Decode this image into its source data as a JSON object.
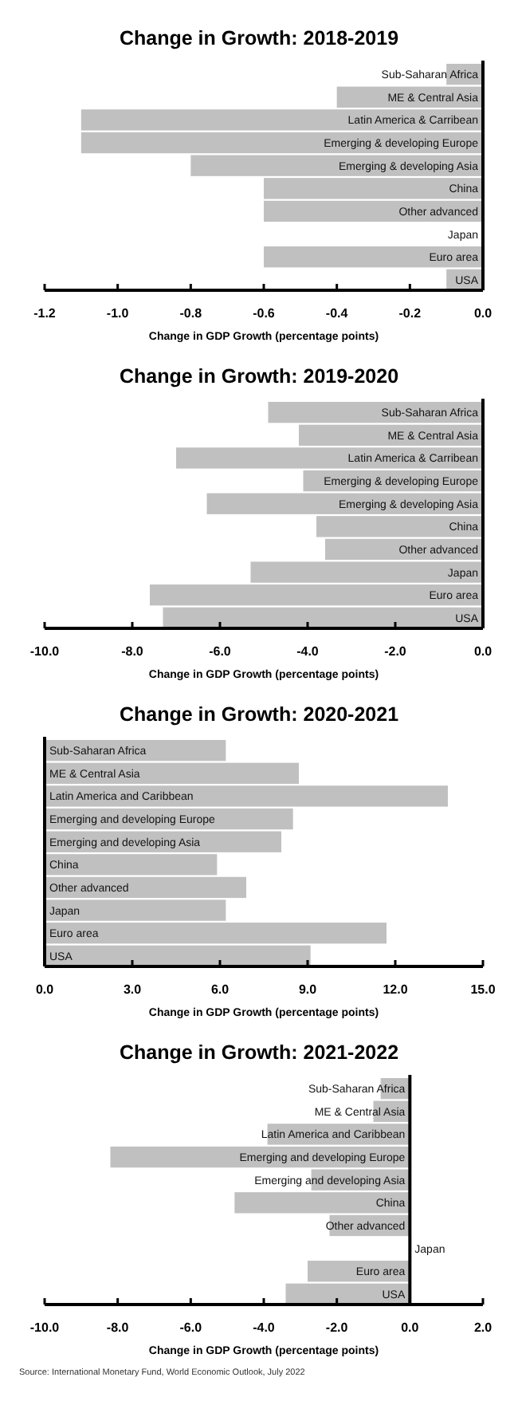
{
  "chart_data": [
    {
      "type": "bar",
      "orientation": "horizontal",
      "title": "Change in Growth: 2018-2019",
      "xlabel": "Change in GDP Growth (percentage points)",
      "categories": [
        "Sub-Saharan Africa",
        "ME & Central Asia",
        "Latin America & Carribean",
        "Emerging & developing Europe",
        "Emerging & developing Asia",
        "China",
        "Other advanced",
        "Japan",
        "Euro area",
        "USA"
      ],
      "values": [
        -0.1,
        -0.4,
        -1.1,
        -1.1,
        -0.8,
        -0.6,
        -0.6,
        0,
        -0.6,
        -0.1
      ],
      "color": "#c0c0c0",
      "xlim": [
        -1.2,
        0
      ],
      "xticks": [
        {
          "value": -1.2,
          "label": "-1.2"
        },
        {
          "value": -1.0,
          "label": "-1.0"
        },
        {
          "value": -0.8,
          "label": "-0.8"
        },
        {
          "value": -0.6,
          "label": "-0.6"
        },
        {
          "value": -0.4,
          "label": "-0.4"
        },
        {
          "value": -0.2,
          "label": "-0.2"
        },
        {
          "value": 0,
          "label": "0.0"
        }
      ],
      "grid": false
    },
    {
      "type": "bar",
      "orientation": "horizontal",
      "title": "Change in Growth: 2019-2020",
      "xlabel": "Change in GDP Growth (percentage points)",
      "categories": [
        "Sub-Saharan Africa",
        "ME & Central Asia",
        "Latin America & Carribean",
        "Emerging & developing Europe",
        "Emerging & developing Asia",
        "China",
        "Other advanced",
        "Japan",
        "Euro area",
        "USA"
      ],
      "values": [
        -4.9,
        -4.2,
        -7.0,
        -4.1,
        -6.3,
        -3.8,
        -3.6,
        -5.3,
        -7.6,
        -7.3
      ],
      "color": "#c0c0c0",
      "xlim": [
        -10,
        0
      ],
      "xticks": [
        {
          "value": -10,
          "label": "-10.0"
        },
        {
          "value": -8,
          "label": "-8.0"
        },
        {
          "value": -6,
          "label": "-6.0"
        },
        {
          "value": -4,
          "label": "-4.0"
        },
        {
          "value": -2,
          "label": "-2.0"
        },
        {
          "value": 0,
          "label": "0.0"
        }
      ],
      "grid": false
    },
    {
      "type": "bar",
      "orientation": "horizontal",
      "title": "Change in Growth: 2020-2021",
      "xlabel": "Change in GDP Growth (percentage points)",
      "categories": [
        "Sub-Saharan Africa",
        "ME & Central Asia",
        "Latin America and Caribbean",
        "Emerging and developing Europe",
        "Emerging and developing Asia",
        "China",
        "Other advanced",
        "Japan",
        "Euro area",
        "USA"
      ],
      "values": [
        6.2,
        8.7,
        13.8,
        8.5,
        8.1,
        5.9,
        6.9,
        6.2,
        11.7,
        9.1
      ],
      "color": "#c0c0c0",
      "xlim": [
        0,
        15
      ],
      "xticks": [
        {
          "value": 0,
          "label": "0.0"
        },
        {
          "value": 3,
          "label": "3.0"
        },
        {
          "value": 6,
          "label": "6.0"
        },
        {
          "value": 9,
          "label": "9.0"
        },
        {
          "value": 12,
          "label": "12.0"
        },
        {
          "value": 15,
          "label": "15.0"
        }
      ],
      "grid": false
    },
    {
      "type": "bar",
      "orientation": "horizontal",
      "title": "Change in Growth: 2021-2022",
      "xlabel": "Change in GDP Growth (percentage points)",
      "categories": [
        "Sub-Saharan Africa",
        "ME & Central Asia",
        "Latin America and Caribbean",
        "Emerging and developing Europe",
        "Emerging and developing Asia",
        "China",
        "Other advanced",
        "Japan",
        "Euro area",
        "USA"
      ],
      "values": [
        -0.8,
        -1.0,
        -3.9,
        -8.2,
        -2.7,
        -4.8,
        -2.2,
        0,
        -2.8,
        -3.4
      ],
      "color": "#c0c0c0",
      "xlim": [
        -10,
        2
      ],
      "xticks": [
        {
          "value": -10,
          "label": "-10.0"
        },
        {
          "value": -8,
          "label": "-8.0"
        },
        {
          "value": -6,
          "label": "-6.0"
        },
        {
          "value": -4,
          "label": "-4.0"
        },
        {
          "value": -2,
          "label": "-2.0"
        },
        {
          "value": 0,
          "label": "0.0"
        },
        {
          "value": 2,
          "label": "2.0"
        }
      ],
      "grid": false,
      "annotations": [
        "Source: International Monetary Fund, World Economic Outlook, July 2022"
      ]
    }
  ]
}
